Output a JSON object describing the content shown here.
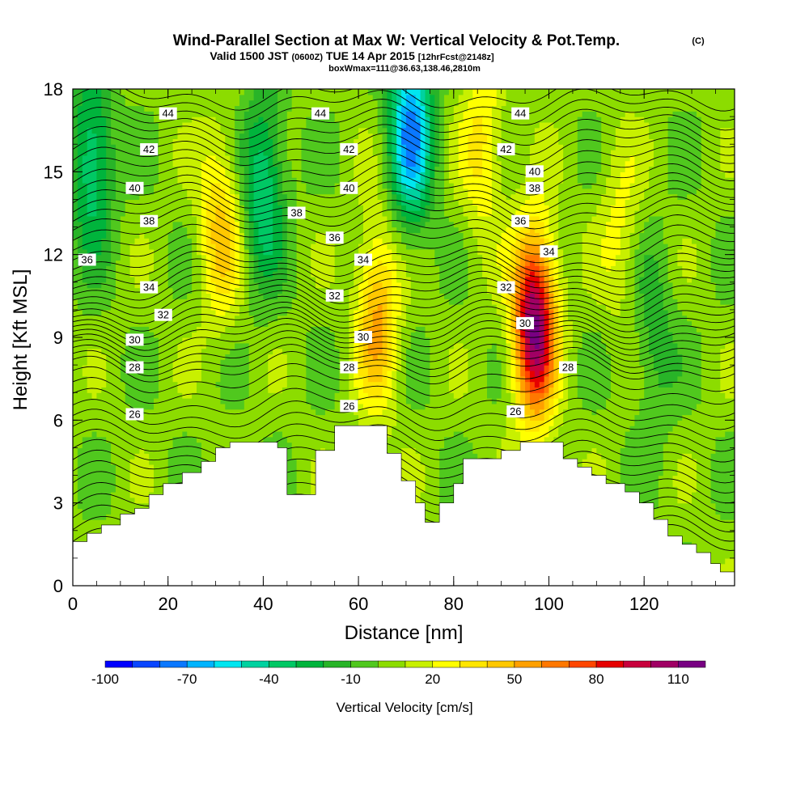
{
  "chart_data": {
    "type": "heatmap",
    "title": "Wind-Parallel Section at Max W: Vertical Velocity & Pot.Temp.",
    "title_mark": "(C)",
    "subtitle_prefix": "Valid 1500 JST",
    "subtitle_zulu": "(0600Z)",
    "subtitle_date": "TUE 14 Apr 2015",
    "subtitle_fcst": "[12hrFcst@2148z]",
    "subtitle2": "boxWmax=111@36.63,138.46,2810m",
    "xlabel": "Distance [nm]",
    "ylabel": "Height [Kft MSL]",
    "xlim": [
      0,
      139
    ],
    "ylim": [
      0,
      18
    ],
    "x_ticks": [
      "0",
      "20",
      "40",
      "60",
      "80",
      "100",
      "120"
    ],
    "y_ticks": [
      "0",
      "3",
      "6",
      "9",
      "12",
      "15",
      "18"
    ],
    "colorbar_label": "Vertical Velocity [cm/s]",
    "colorbar_ticks": [
      "-100",
      "-70",
      "-40",
      "-10",
      "20",
      "50",
      "80",
      "110"
    ],
    "colorbar_levels": [
      -100,
      -90,
      -80,
      -70,
      -60,
      -50,
      -40,
      -30,
      -20,
      -10,
      0,
      10,
      20,
      30,
      40,
      50,
      60,
      70,
      80,
      90,
      100,
      110,
      120
    ],
    "colorbar_colors": [
      "#0000ff",
      "#0a46ff",
      "#0a78ff",
      "#00b4ff",
      "#00e6f0",
      "#00d2a0",
      "#00c864",
      "#00b43c",
      "#28b428",
      "#50c81e",
      "#8cdc00",
      "#c8f000",
      "#ffff00",
      "#ffe600",
      "#ffc800",
      "#ffa000",
      "#ff7800",
      "#ff4600",
      "#e60000",
      "#c8003c",
      "#a00064",
      "#780082"
    ],
    "terrain": [
      [
        0,
        1.6
      ],
      [
        3,
        1.9
      ],
      [
        6,
        2.2
      ],
      [
        10,
        2.6
      ],
      [
        13,
        2.8
      ],
      [
        16,
        3.3
      ],
      [
        19,
        3.7
      ],
      [
        23,
        4.1
      ],
      [
        27,
        4.5
      ],
      [
        30,
        5.0
      ],
      [
        33,
        5.2
      ],
      [
        38,
        5.2
      ],
      [
        43,
        5.0
      ],
      [
        45,
        3.3
      ],
      [
        47,
        3.3
      ],
      [
        51,
        4.9
      ],
      [
        55,
        5.8
      ],
      [
        62,
        5.8
      ],
      [
        66,
        4.8
      ],
      [
        69,
        3.8
      ],
      [
        72,
        3.0
      ],
      [
        74,
        2.3
      ],
      [
        77,
        3.0
      ],
      [
        80,
        3.7
      ],
      [
        82,
        4.6
      ],
      [
        86,
        4.6
      ],
      [
        90,
        4.9
      ],
      [
        94,
        5.2
      ],
      [
        100,
        5.2
      ],
      [
        103,
        4.6
      ],
      [
        106,
        4.3
      ],
      [
        109,
        4.0
      ],
      [
        112,
        3.7
      ],
      [
        116,
        3.4
      ],
      [
        119,
        3.0
      ],
      [
        122,
        2.4
      ],
      [
        125,
        1.8
      ],
      [
        128,
        1.5
      ],
      [
        131,
        1.2
      ],
      [
        134,
        0.8
      ],
      [
        136,
        0.5
      ],
      [
        139,
        0.2
      ]
    ],
    "w_features": [
      {
        "x": 4,
        "z": 15.5,
        "w": -45
      },
      {
        "x": 40,
        "z": 14.5,
        "w": -45
      },
      {
        "x": 71,
        "z": 16.5,
        "w": -75
      },
      {
        "x": 31,
        "z": 13,
        "w": 40
      },
      {
        "x": 64,
        "z": 9.8,
        "w": 50
      },
      {
        "x": 97,
        "z": 9.5,
        "w": 110
      },
      {
        "x": 86,
        "z": 16,
        "w": 30
      },
      {
        "x": 115,
        "z": 13,
        "w": 20
      },
      {
        "x": 122,
        "z": 9,
        "w": -20
      }
    ],
    "theta_contours": [
      {
        "label": "26",
        "z": 6.2
      },
      {
        "label": "28",
        "z": 7.9
      },
      {
        "label": "30",
        "z": 8.9
      },
      {
        "label": "32",
        "z": 9.8
      },
      {
        "label": "34",
        "z": 10.8
      },
      {
        "label": "36",
        "z": 11.8
      },
      {
        "label": "38",
        "z": 13.2
      },
      {
        "label": "40",
        "z": 14.4
      },
      {
        "label": "42",
        "z": 15.8
      },
      {
        "label": "44",
        "z": 17.1
      }
    ],
    "theta_levels": [
      20,
      20.5,
      21,
      21.5,
      22,
      22.5,
      23,
      23.5,
      24,
      24.5,
      25,
      25.5,
      26,
      26.5,
      27,
      27.5,
      28,
      28.5,
      29,
      29.5,
      30,
      30.5,
      31,
      31.5,
      32,
      32.5,
      33,
      33.5,
      34,
      34.5,
      35,
      35.5,
      36,
      36.5,
      37,
      37.5,
      38,
      38.5,
      39,
      39.5,
      40,
      40.5,
      41,
      41.5,
      42,
      42.5,
      43,
      43.5,
      44,
      44.5,
      45
    ]
  }
}
